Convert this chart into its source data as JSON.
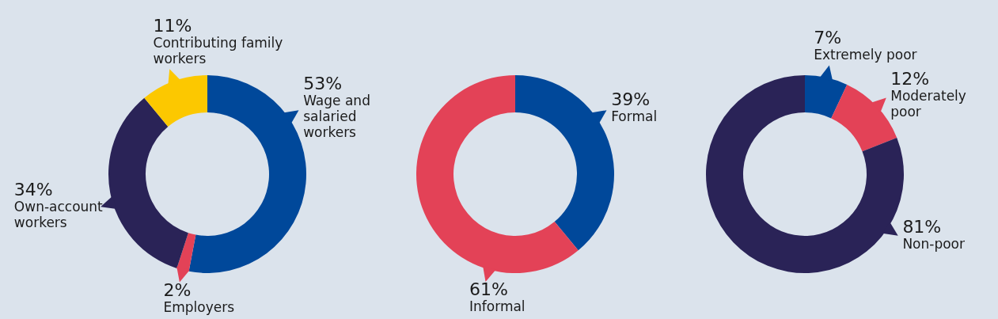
{
  "chart_data": [
    {
      "type": "donut",
      "categories": [
        "Wage and salaried workers",
        "Employers",
        "Own-account workers",
        "Contributing family workers"
      ],
      "values": [
        53,
        2,
        34,
        11
      ],
      "value_labels": [
        "53%",
        "2%",
        "34%",
        "11%"
      ],
      "colors": [
        "#00489a",
        "#e34257",
        "#2a2357",
        "#fcc800"
      ]
    },
    {
      "type": "donut",
      "categories": [
        "Formal",
        "Informal"
      ],
      "values": [
        39,
        61
      ],
      "value_labels": [
        "39%",
        "61%"
      ],
      "colors": [
        "#00489a",
        "#e34257"
      ]
    },
    {
      "type": "donut",
      "categories": [
        "Extremely poor",
        "Moderately poor",
        "Non-poor"
      ],
      "values": [
        7,
        12,
        81
      ],
      "value_labels": [
        "7%",
        "12%",
        "81%"
      ],
      "colors": [
        "#00489a",
        "#e34257",
        "#2a2357"
      ]
    }
  ]
}
